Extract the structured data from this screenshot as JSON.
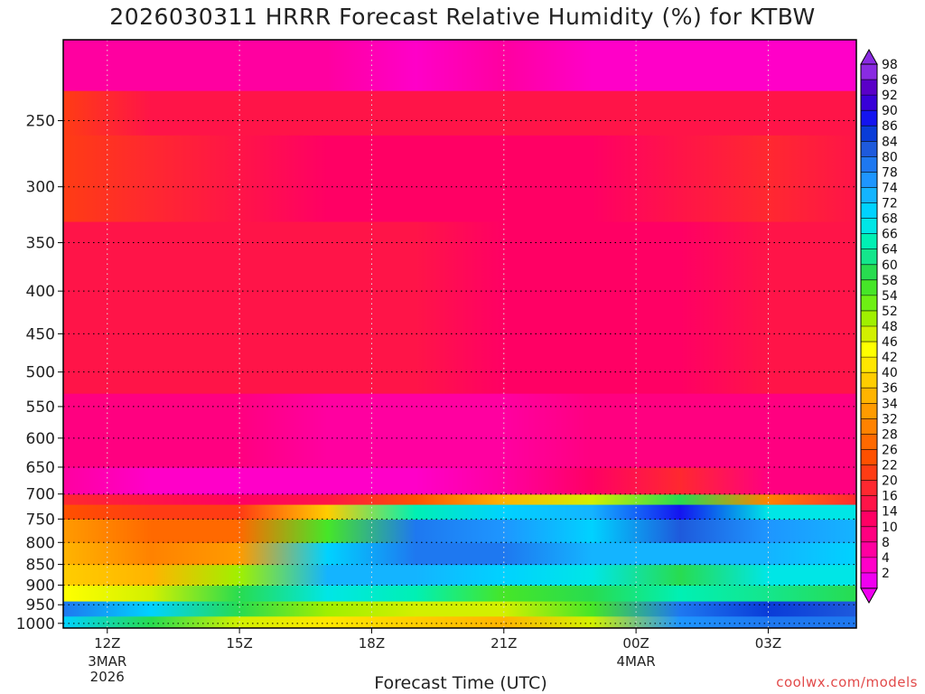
{
  "chart_data": {
    "type": "heatmap",
    "title": "2026030311 HRRR Forecast Relative Humidity (%) for KTBW",
    "xlabel": "Forecast Time (UTC)",
    "ylabel": "",
    "credit": "coolwx.com/models",
    "y_axis": {
      "scale": "log",
      "reversed": true,
      "ylim": [
        200,
        1013
      ],
      "tick_labels": [
        "250",
        "300",
        "350",
        "400",
        "450",
        "500",
        "550",
        "600",
        "650",
        "700",
        "750",
        "800",
        "850",
        "900",
        "950",
        "1000"
      ],
      "tick_values": [
        250,
        300,
        350,
        400,
        450,
        500,
        550,
        600,
        650,
        700,
        750,
        800,
        850,
        900,
        950,
        1000
      ],
      "grid": true
    },
    "x_axis": {
      "xlim": [
        11,
        29
      ],
      "ticks": [
        {
          "value": 12,
          "label": "12Z",
          "sub1": "3MAR",
          "sub2": "2026"
        },
        {
          "value": 15,
          "label": "15Z",
          "sub1": "",
          "sub2": ""
        },
        {
          "value": 18,
          "label": "18Z",
          "sub1": "",
          "sub2": ""
        },
        {
          "value": 21,
          "label": "21Z",
          "sub1": "",
          "sub2": ""
        },
        {
          "value": 24,
          "label": "00Z",
          "sub1": "4MAR",
          "sub2": ""
        },
        {
          "value": 27,
          "label": "03Z",
          "sub1": "",
          "sub2": ""
        }
      ],
      "grid": true
    },
    "colorbar": {
      "labels": [
        "98",
        "96",
        "92",
        "90",
        "86",
        "84",
        "80",
        "78",
        "74",
        "72",
        "68",
        "66",
        "64",
        "60",
        "58",
        "54",
        "52",
        "48",
        "46",
        "42",
        "40",
        "36",
        "34",
        "32",
        "28",
        "26",
        "22",
        "20",
        "16",
        "14",
        "10",
        "8",
        "4",
        "2"
      ],
      "colors": [
        "#8a2be2",
        "#5a00c8",
        "#3800d8",
        "#1414f0",
        "#0a3cd8",
        "#1e5adc",
        "#1e78f0",
        "#1e96ff",
        "#14b4ff",
        "#00d2ff",
        "#00e6e6",
        "#00f0b4",
        "#14e68c",
        "#28dc50",
        "#46e628",
        "#6ef014",
        "#a0f000",
        "#d2f000",
        "#ffff00",
        "#ffe600",
        "#ffcd00",
        "#ffb400",
        "#ff9b00",
        "#ff8200",
        "#ff6900",
        "#ff5000",
        "#ff3c14",
        "#ff2830",
        "#ff1448",
        "#ff0064",
        "#ff0080",
        "#ff00a0",
        "#ff00c8",
        "#f000f0"
      ]
    },
    "layers": [
      {
        "name": "surface",
        "p_top": 1013,
        "color": "#a0522d"
      },
      {
        "name": "rh_980_1010",
        "p_bottom": 1010,
        "rh_by_hour": [
          [
            11,
            72
          ],
          [
            13,
            60
          ],
          [
            15,
            50
          ],
          [
            17,
            42
          ],
          [
            19,
            40
          ],
          [
            21,
            38
          ],
          [
            23,
            48
          ],
          [
            25,
            78
          ],
          [
            27,
            82
          ],
          [
            29,
            80
          ]
        ]
      },
      {
        "name": "rh_940_980",
        "p_bottom": 980,
        "rh_by_hour": [
          [
            11,
            80
          ],
          [
            13,
            72
          ],
          [
            15,
            62
          ],
          [
            17,
            52
          ],
          [
            19,
            48
          ],
          [
            21,
            50
          ],
          [
            23,
            58
          ],
          [
            25,
            80
          ],
          [
            27,
            86
          ],
          [
            29,
            84
          ]
        ]
      },
      {
        "name": "rh_900_940",
        "p_bottom": 940,
        "rh_by_hour": [
          [
            11,
            46
          ],
          [
            13,
            50
          ],
          [
            15,
            60
          ],
          [
            17,
            70
          ],
          [
            19,
            66
          ],
          [
            21,
            58
          ],
          [
            23,
            62
          ],
          [
            25,
            66
          ],
          [
            27,
            64
          ],
          [
            29,
            62
          ]
        ]
      },
      {
        "name": "rh_850_900",
        "p_bottom": 900,
        "rh_by_hour": [
          [
            11,
            40
          ],
          [
            13,
            36
          ],
          [
            15,
            52
          ],
          [
            17,
            76
          ],
          [
            19,
            74
          ],
          [
            21,
            72
          ],
          [
            23,
            70
          ],
          [
            25,
            62
          ],
          [
            27,
            68
          ],
          [
            29,
            70
          ]
        ]
      },
      {
        "name": "rh_800_850",
        "p_bottom": 850,
        "rh_by_hour": [
          [
            11,
            38
          ],
          [
            13,
            32
          ],
          [
            15,
            34
          ],
          [
            17,
            72
          ],
          [
            19,
            80
          ],
          [
            21,
            80
          ],
          [
            23,
            76
          ],
          [
            25,
            74
          ],
          [
            27,
            74
          ],
          [
            29,
            72
          ]
        ]
      },
      {
        "name": "rh_750_800",
        "p_bottom": 800,
        "rh_by_hour": [
          [
            11,
            34
          ],
          [
            13,
            30
          ],
          [
            15,
            28
          ],
          [
            17,
            58
          ],
          [
            19,
            80
          ],
          [
            21,
            78
          ],
          [
            23,
            72
          ],
          [
            25,
            84
          ],
          [
            27,
            78
          ],
          [
            29,
            76
          ]
        ]
      },
      {
        "name": "rh_720_750",
        "p_bottom": 750,
        "rh_by_hour": [
          [
            11,
            26
          ],
          [
            13,
            24
          ],
          [
            15,
            22
          ],
          [
            17,
            40
          ],
          [
            19,
            66
          ],
          [
            21,
            72
          ],
          [
            23,
            76
          ],
          [
            25,
            90
          ],
          [
            27,
            70
          ],
          [
            29,
            68
          ]
        ]
      },
      {
        "name": "rh_700_720",
        "p_bottom": 720,
        "rh_by_hour": [
          [
            11,
            20
          ],
          [
            13,
            16
          ],
          [
            15,
            14
          ],
          [
            17,
            16
          ],
          [
            19,
            26
          ],
          [
            21,
            36
          ],
          [
            23,
            48
          ],
          [
            25,
            60
          ],
          [
            27,
            32
          ],
          [
            29,
            20
          ]
        ]
      },
      {
        "name": "rh_650_700",
        "p_bottom": 700,
        "rh_by_hour": [
          [
            11,
            8
          ],
          [
            13,
            6
          ],
          [
            15,
            6
          ],
          [
            17,
            6
          ],
          [
            19,
            6
          ],
          [
            21,
            8
          ],
          [
            23,
            14
          ],
          [
            25,
            20
          ],
          [
            27,
            12
          ],
          [
            29,
            10
          ]
        ]
      },
      {
        "name": "rh_530_650",
        "p_bottom": 650,
        "rh_by_hour": [
          [
            11,
            10
          ],
          [
            13,
            10
          ],
          [
            15,
            10
          ],
          [
            17,
            8
          ],
          [
            19,
            8
          ],
          [
            21,
            8
          ],
          [
            23,
            10
          ],
          [
            25,
            10
          ],
          [
            27,
            10
          ],
          [
            29,
            10
          ]
        ]
      },
      {
        "name": "rh_330_530",
        "p_bottom": 530,
        "rh_by_hour": [
          [
            11,
            18
          ],
          [
            13,
            16
          ],
          [
            15,
            16
          ],
          [
            17,
            16
          ],
          [
            19,
            16
          ],
          [
            21,
            14
          ],
          [
            23,
            14
          ],
          [
            25,
            14
          ],
          [
            27,
            16
          ],
          [
            29,
            16
          ]
        ]
      },
      {
        "name": "rh_260_330",
        "p_bottom": 330,
        "rh_by_hour": [
          [
            11,
            24
          ],
          [
            13,
            20
          ],
          [
            15,
            16
          ],
          [
            17,
            14
          ],
          [
            19,
            14
          ],
          [
            21,
            14
          ],
          [
            23,
            14
          ],
          [
            25,
            16
          ],
          [
            27,
            20
          ],
          [
            29,
            18
          ]
        ]
      },
      {
        "name": "rh_230_260",
        "p_bottom": 260,
        "rh_by_hour": [
          [
            11,
            24
          ],
          [
            13,
            18
          ],
          [
            15,
            16
          ],
          [
            17,
            16
          ],
          [
            19,
            16
          ],
          [
            21,
            16
          ],
          [
            23,
            16
          ],
          [
            25,
            16
          ],
          [
            27,
            16
          ],
          [
            29,
            16
          ]
        ]
      },
      {
        "name": "rh_200_230",
        "p_bottom": 230,
        "rh_by_hour": [
          [
            11,
            8
          ],
          [
            13,
            8
          ],
          [
            15,
            8
          ],
          [
            17,
            8
          ],
          [
            19,
            6
          ],
          [
            21,
            8
          ],
          [
            23,
            6
          ],
          [
            25,
            6
          ],
          [
            27,
            4
          ],
          [
            29,
            6
          ]
        ]
      }
    ]
  }
}
